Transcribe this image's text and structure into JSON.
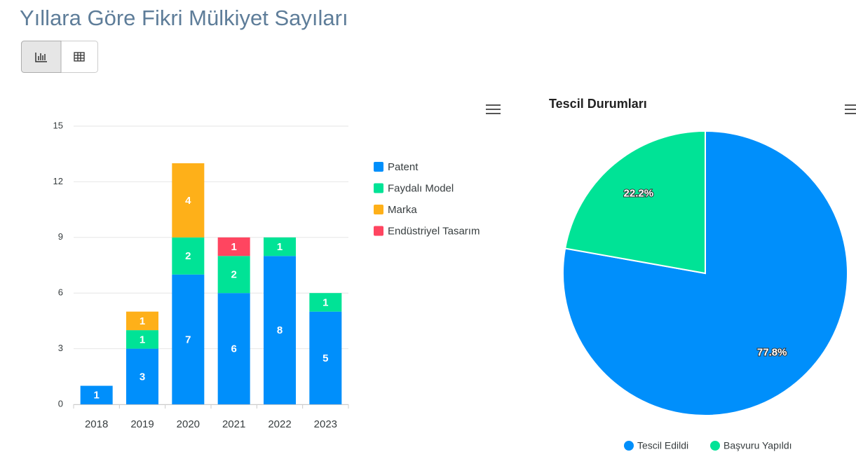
{
  "page_title": "Yıllara Göre Fikri Mülkiyet Sayıları",
  "chart_data": [
    {
      "type": "stacked_bar",
      "categories": [
        "2018",
        "2019",
        "2020",
        "2021",
        "2022",
        "2023"
      ],
      "series": [
        {
          "name": "Patent",
          "color": "#008ffb",
          "values": [
            1,
            3,
            7,
            6,
            8,
            5
          ]
        },
        {
          "name": "Faydalı Model",
          "color": "#00e396",
          "values": [
            null,
            1,
            2,
            2,
            1,
            1
          ]
        },
        {
          "name": "Marka",
          "color": "#feb019",
          "values": [
            null,
            1,
            4,
            null,
            null,
            null
          ]
        },
        {
          "name": "Endüstriyel Tasarım",
          "color": "#ff4560",
          "values": [
            null,
            null,
            null,
            1,
            null,
            null
          ]
        }
      ],
      "ylim": [
        0,
        15
      ],
      "yticks": [
        0,
        3,
        6,
        9,
        12,
        15
      ],
      "grid": true,
      "legend": "right"
    },
    {
      "type": "pie",
      "title": "Tescil Durumları",
      "categories": [
        "Tescil Edildi",
        "Başvuru Yapıldı"
      ],
      "colors": [
        "#008ffb",
        "#00e396"
      ],
      "values": [
        77.8,
        22.2
      ],
      "value_labels": [
        "77.8%",
        "22.2%"
      ],
      "legend": "bottom"
    }
  ]
}
